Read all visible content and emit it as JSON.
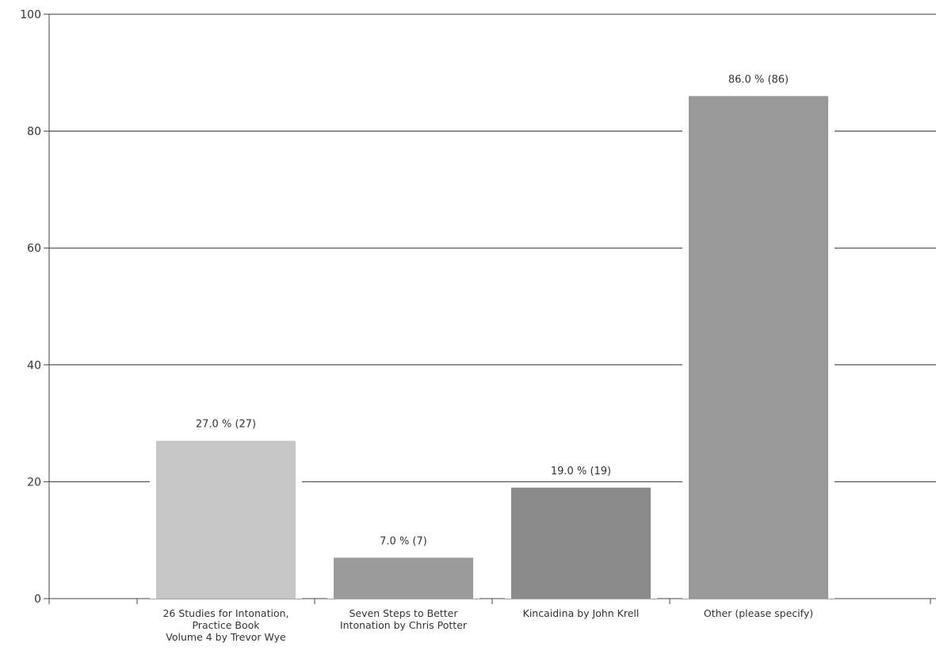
{
  "chart_data": {
    "type": "bar",
    "categories": [
      [
        "26 Studies for Intonation,",
        "Practice Book",
        "Volume 4 by Trevor Wye"
      ],
      [
        "Seven Steps to Better",
        "Intonation by Chris Potter"
      ],
      [
        "Kincaidina by John Krell"
      ],
      [
        "Other (please specify)"
      ]
    ],
    "values": [
      27,
      7,
      19,
      86
    ],
    "data_labels": [
      "27.0 % (27)",
      "7.0 % (7)",
      "19.0 % (19)",
      "86.0 % (86)"
    ],
    "bar_colors": [
      "#c6c6c6",
      "#9b9b9b",
      "#8a8a8a",
      "#999999"
    ],
    "ylim": [
      0,
      100
    ],
    "yticks": [
      0,
      20,
      40,
      60,
      80,
      100
    ],
    "grid": true,
    "title": "",
    "xlabel": "",
    "ylabel": ""
  }
}
